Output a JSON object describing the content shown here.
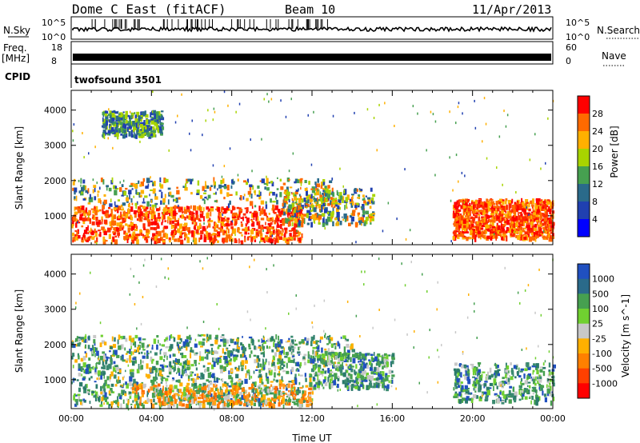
{
  "header": {
    "title": "Dome C East (fitACF)",
    "beam": "Beam 10",
    "date": "11/Apr/2013"
  },
  "strips": {
    "nsky_label": "N.Sky",
    "nsky_ticks": [
      "10^5",
      "10^0"
    ],
    "nsearch_label": "N.Search",
    "nsearch_ticks": [
      "10^5",
      "10^0"
    ],
    "freq_label": "Freq.",
    "freq_unit": "[MHz]",
    "freq_ticks": [
      "18",
      "8"
    ],
    "nave_label": "Nave",
    "nave_ticks": [
      "60",
      "0"
    ],
    "cpid_label": "CPID",
    "cpid_value": "twofsound 3501"
  },
  "chart_data": [
    {
      "type": "heatmap",
      "name": "power",
      "ylabel": "Slant Range [km]",
      "ylim": [
        180,
        4560
      ],
      "yticks": [
        "1000",
        "2000",
        "3000",
        "4000"
      ],
      "xlim_hours": [
        0,
        24
      ],
      "colorbar": {
        "label": "Power [dB]",
        "ticks": [
          "28",
          "24",
          "20",
          "16",
          "12",
          "8",
          "4"
        ],
        "colors": [
          "#ff0000",
          "#ff6a00",
          "#ffb000",
          "#a8d400",
          "#46a050",
          "#2a6a8a",
          "#2040b0",
          "#0000ff"
        ]
      },
      "regions": [
        {
          "t0": 0,
          "t1": 11.5,
          "r0": 300,
          "r1": 1300,
          "level": "high"
        },
        {
          "t0": 0,
          "t1": 13,
          "r0": 1300,
          "r1": 2100,
          "level": "mid"
        },
        {
          "t0": 1.5,
          "t1": 4.5,
          "r0": 3300,
          "r1": 4000,
          "level": "low"
        },
        {
          "t0": 10.5,
          "t1": 15,
          "r0": 800,
          "r1": 1800,
          "level": "mid"
        },
        {
          "t0": 19,
          "t1": 24,
          "r0": 400,
          "r1": 1500,
          "level": "high"
        }
      ]
    },
    {
      "type": "heatmap",
      "name": "velocity",
      "ylabel": "Slant Range [km]",
      "ylim": [
        180,
        4560
      ],
      "yticks": [
        "1000",
        "2000",
        "3000",
        "4000"
      ],
      "xlim_hours": [
        0,
        24
      ],
      "xticks": [
        "00:00",
        "04:00",
        "08:00",
        "12:00",
        "16:00",
        "20:00",
        "00:00"
      ],
      "xlabel": "Time UT",
      "colorbar": {
        "label": "Velocity [m s^-1]",
        "ticks": [
          "1000",
          "500",
          "100",
          "25",
          "-25",
          "-100",
          "-500",
          "-1000"
        ],
        "colors": [
          "#2050c0",
          "#2a6a8a",
          "#46a050",
          "#70d030",
          "#c8c8c8",
          "#ffb000",
          "#ff8000",
          "#ff4000",
          "#ff0000"
        ]
      },
      "regions": [
        {
          "t0": 0,
          "t1": 12,
          "r0": 300,
          "r1": 1400,
          "level": "mixed"
        },
        {
          "t0": 3,
          "t1": 12,
          "r0": 300,
          "r1": 900,
          "level": "negative"
        },
        {
          "t0": 0,
          "t1": 14,
          "r0": 1400,
          "r1": 2300,
          "level": "mixed"
        },
        {
          "t0": 12,
          "t1": 16,
          "r0": 800,
          "r1": 1800,
          "level": "positive"
        },
        {
          "t0": 19,
          "t1": 24,
          "r0": 400,
          "r1": 1500,
          "level": "positive"
        }
      ]
    }
  ]
}
